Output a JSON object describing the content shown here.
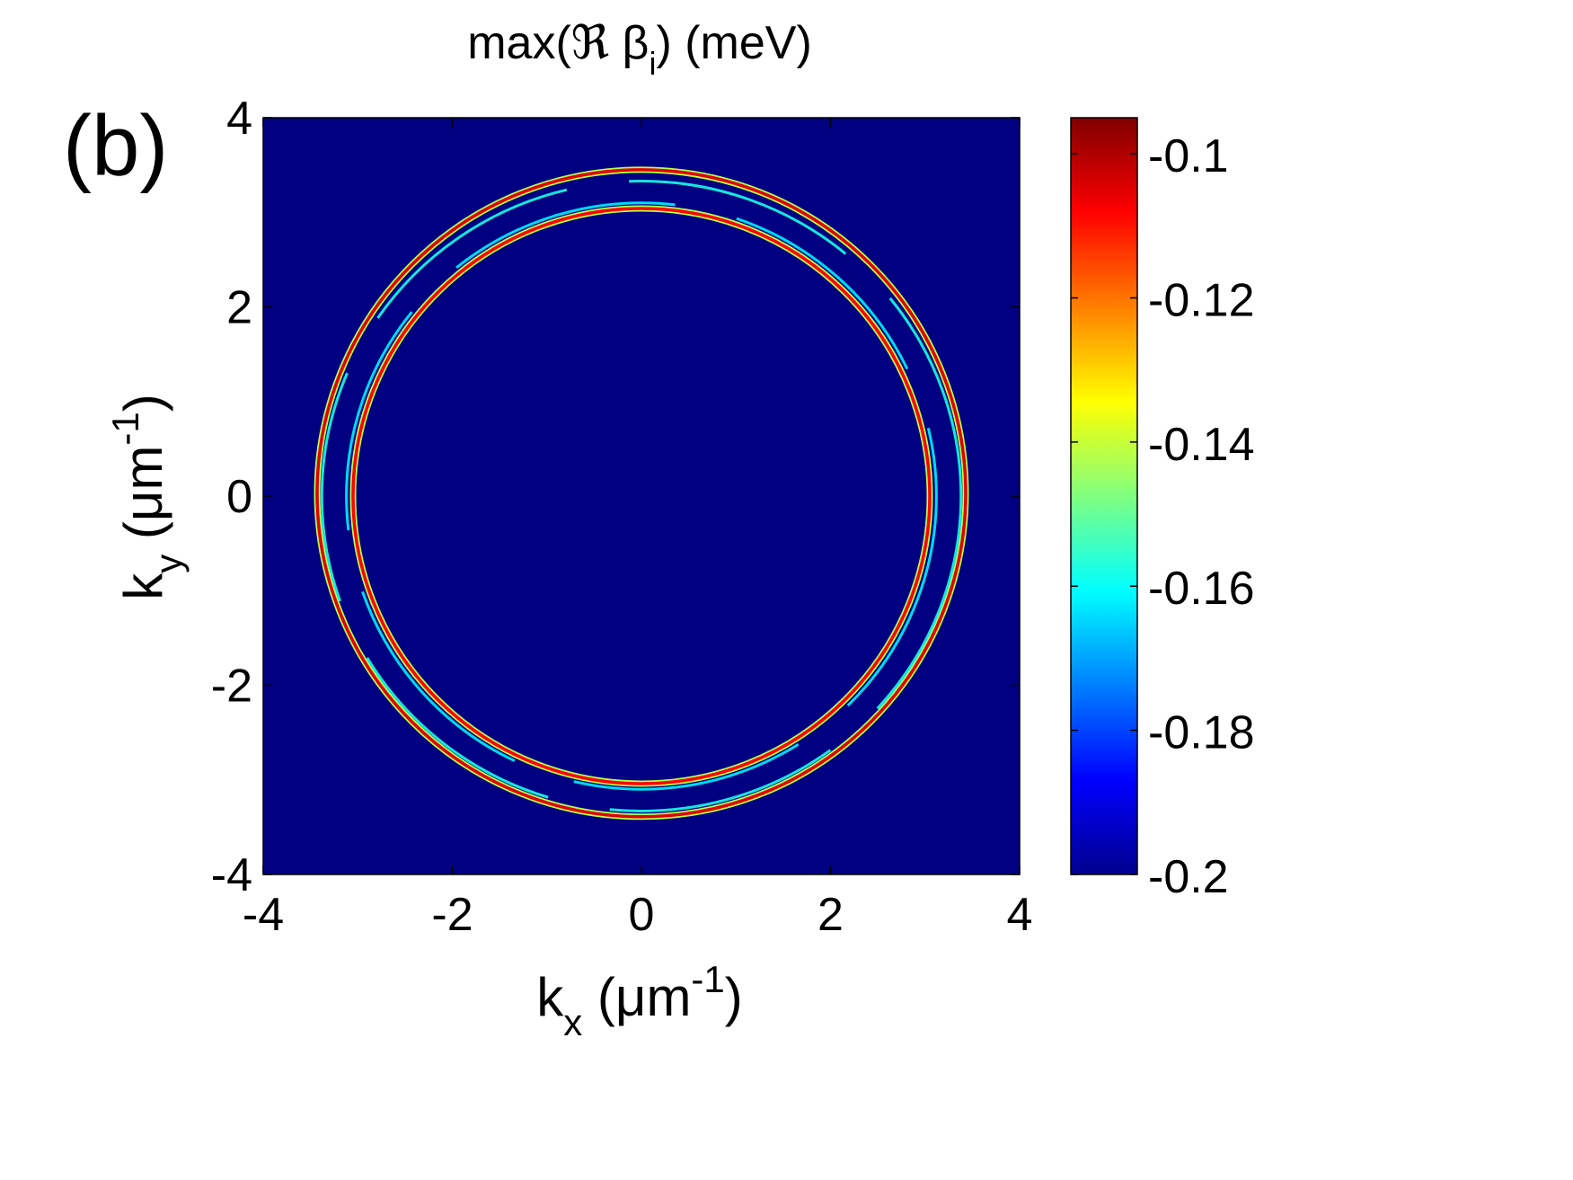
{
  "chart_data": {
    "type": "heatmap",
    "panel_label": "(b)",
    "title": {
      "main": "max(ℜ β",
      "sub": "i",
      "tail": ") (meV)"
    },
    "xlabel": {
      "base": "k",
      "sub": "x",
      "unit_open": " (μm",
      "sup": "-1",
      "unit_close": ")"
    },
    "ylabel": {
      "base": "k",
      "sub": "y",
      "unit_open": " (μm",
      "sup": "-1",
      "unit_close": ")"
    },
    "xlim": [
      -4,
      4
    ],
    "ylim": [
      -4,
      4
    ],
    "xticks": [
      -4,
      -2,
      0,
      2,
      4
    ],
    "yticks": [
      -4,
      -2,
      0,
      2,
      4
    ],
    "xtick_labels": [
      "-4",
      "-2",
      "0",
      "2",
      "4"
    ],
    "ytick_labels": [
      "-4",
      "-2",
      "0",
      "2",
      "4"
    ],
    "colormap": "jet",
    "background_value": -0.2,
    "colorbar": {
      "clim": [
        -0.2,
        -0.095
      ],
      "ticks": [
        -0.2,
        -0.18,
        -0.16,
        -0.14,
        -0.12,
        -0.1
      ],
      "tick_labels": [
        "-0.2",
        "-0.18",
        "-0.16",
        "-0.14",
        "-0.12",
        "-0.1"
      ]
    },
    "rings": [
      {
        "name": "outer-main",
        "cx": 0,
        "cy": 0.03,
        "rx": 3.43,
        "ry": 3.42,
        "value": -0.105
      },
      {
        "name": "inner-main",
        "cx": 0,
        "cy": 0.0,
        "rx": 3.05,
        "ry": 3.04,
        "value": -0.108
      },
      {
        "name": "outer-side-cyan",
        "cx": 0,
        "cy": 0.0,
        "rx": 3.38,
        "ry": 3.33,
        "value": -0.158
      },
      {
        "name": "inner-side-cyan",
        "cx": 0,
        "cy": 0.0,
        "rx": 3.12,
        "ry": 3.1,
        "value": -0.162
      }
    ],
    "colors": {
      "background": "#00008f",
      "axes_line": "#000000"
    }
  }
}
